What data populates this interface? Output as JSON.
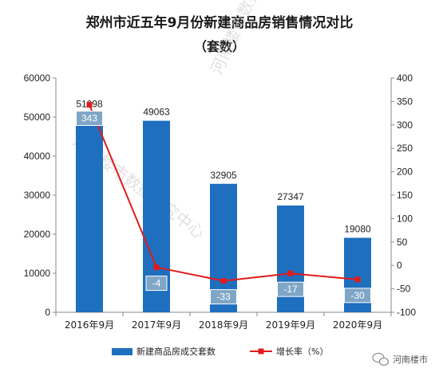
{
  "chart_data": {
    "type": "bar",
    "title": "郑州市近五年9月份新建商品房销售情况对比",
    "subtitle": "（套数）",
    "categories": [
      "2016年9月",
      "2017年9月",
      "2018年9月",
      "2019年9月",
      "2020年9月"
    ],
    "series": [
      {
        "name": "新建商品房成交套数",
        "type": "bar",
        "axis": "left",
        "values": [
          51098,
          49063,
          32905,
          27347,
          19080
        ],
        "color": "#1f6fbf"
      },
      {
        "name": "增长率（%）",
        "type": "line",
        "axis": "right",
        "values": [
          343,
          -4,
          -33,
          -17,
          -30
        ],
        "color": "#e01b1b"
      }
    ],
    "y_left": {
      "min": 0,
      "max": 60000,
      "step": 10000
    },
    "y_right": {
      "min": -100,
      "max": 400,
      "step": 50
    },
    "legend_position": "bottom",
    "rate_label_color": "#7fa6c6"
  },
  "watermark": "河南楼市数据研究中心",
  "brand": "河南楼市",
  "brand_icon": "wechat-icon"
}
